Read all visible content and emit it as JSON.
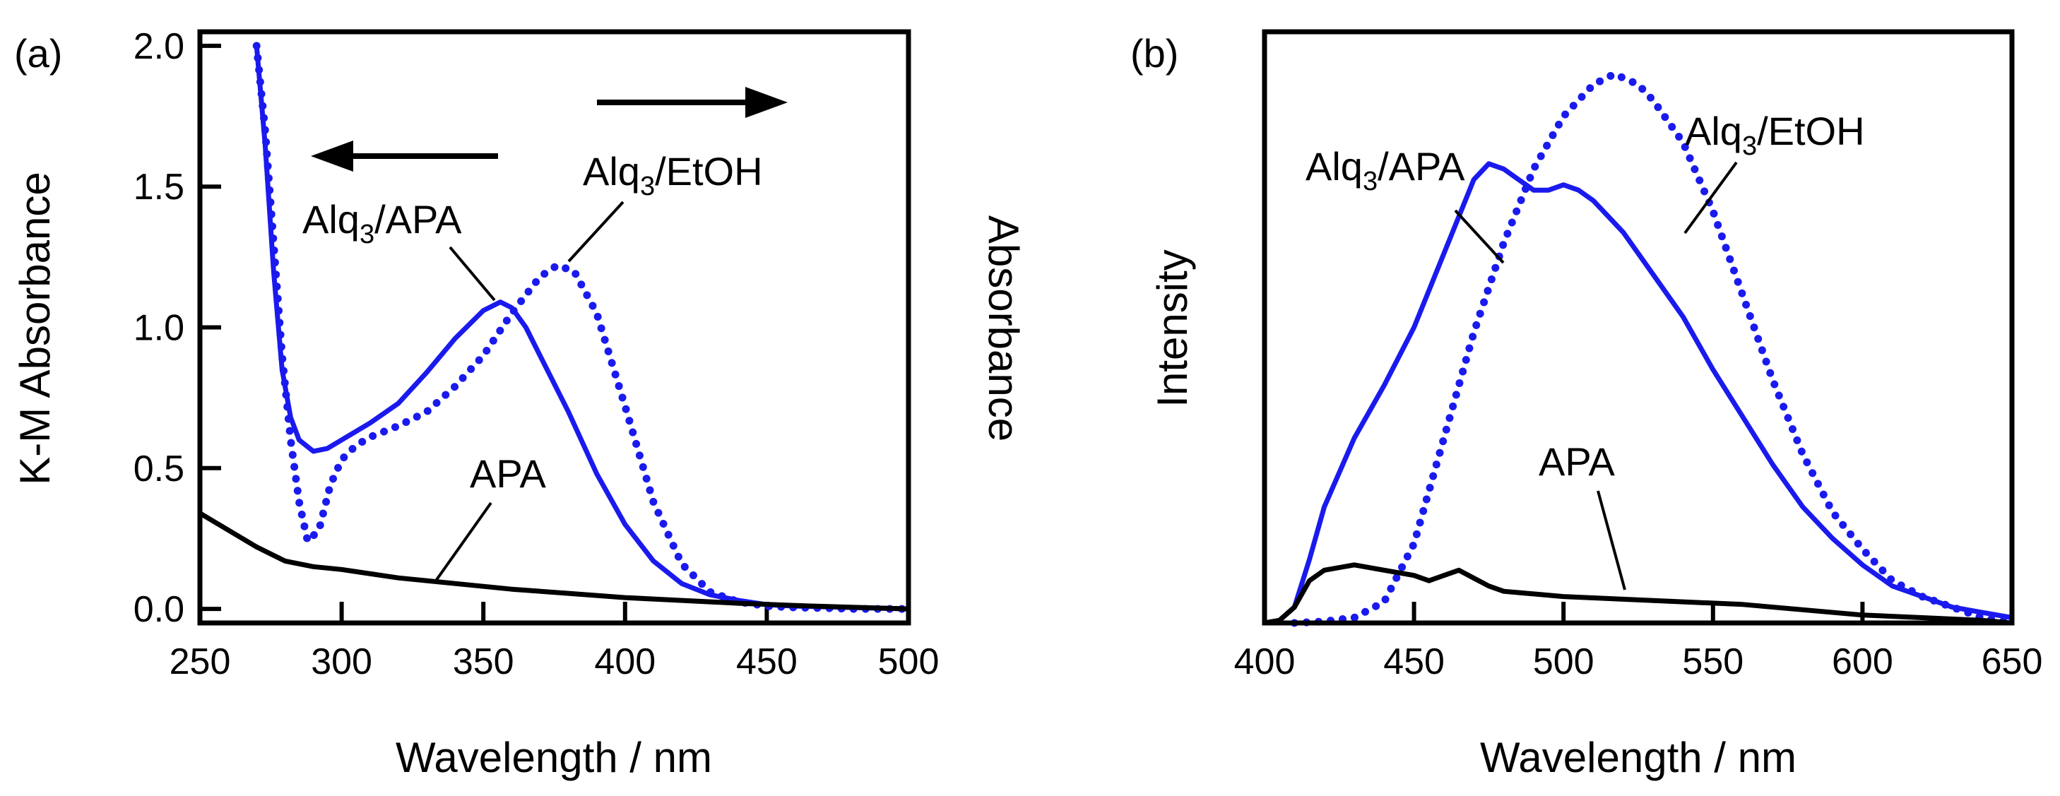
{
  "chart_data": [
    {
      "panel": "(a)",
      "type": "line",
      "xlabel": "Wavelength / nm",
      "ylabel_left": "K-M Absorbance",
      "ylabel_right": "Absorbance",
      "xlim": [
        250,
        500
      ],
      "ylim": [
        -0.05,
        2.05
      ],
      "xticks": [
        250,
        300,
        350,
        400,
        450,
        500
      ],
      "yticks": [
        0.0,
        0.5,
        1.0,
        1.5,
        2.0
      ],
      "ytick_labels": [
        "0.0",
        "0.5",
        "1.0",
        "1.5",
        "2.0"
      ],
      "series": [
        {
          "name": "Alq3/APA",
          "style": "solid",
          "color": "#1a1aee",
          "x": [
            270,
            273,
            276,
            279,
            282,
            285,
            290,
            295,
            300,
            310,
            320,
            330,
            340,
            350,
            356,
            360,
            365,
            370,
            380,
            390,
            400,
            410,
            420,
            430,
            440,
            450,
            460,
            480,
            500
          ],
          "y": [
            2.0,
            1.65,
            1.2,
            0.85,
            0.68,
            0.6,
            0.56,
            0.57,
            0.6,
            0.66,
            0.73,
            0.84,
            0.96,
            1.06,
            1.09,
            1.07,
            1.0,
            0.9,
            0.7,
            0.48,
            0.3,
            0.17,
            0.09,
            0.05,
            0.03,
            0.015,
            0.01,
            0.005,
            0.0
          ]
        },
        {
          "name": "Alq3/EtOH",
          "style": "dotted",
          "color": "#1a1aee",
          "x": [
            270,
            273,
            276,
            279,
            282,
            285,
            288,
            292,
            296,
            300,
            305,
            310,
            320,
            330,
            340,
            350,
            360,
            370,
            376,
            382,
            390,
            400,
            410,
            420,
            430,
            440,
            450,
            460,
            470,
            480,
            500
          ],
          "y": [
            2.0,
            1.7,
            1.3,
            0.9,
            0.6,
            0.38,
            0.24,
            0.28,
            0.44,
            0.53,
            0.58,
            0.61,
            0.65,
            0.7,
            0.79,
            0.9,
            1.05,
            1.18,
            1.22,
            1.2,
            1.05,
            0.72,
            0.38,
            0.16,
            0.06,
            0.025,
            0.01,
            0.005,
            0.003,
            0.0,
            0.0
          ]
        },
        {
          "name": "APA",
          "style": "solid",
          "color": "#000000",
          "x": [
            250,
            260,
            270,
            280,
            290,
            300,
            320,
            340,
            360,
            380,
            400,
            420,
            440,
            460,
            480,
            500
          ],
          "y": [
            0.34,
            0.28,
            0.22,
            0.17,
            0.15,
            0.14,
            0.11,
            0.09,
            0.07,
            0.055,
            0.04,
            0.03,
            0.02,
            0.012,
            0.006,
            0.0
          ]
        }
      ],
      "arrows": [
        {
          "direction": "left",
          "axis": "left"
        },
        {
          "direction": "right",
          "axis": "right"
        }
      ],
      "annotations": [
        {
          "text_main": "Alq",
          "text_sub": "3",
          "text_rest": "/APA"
        },
        {
          "text_main": "Alq",
          "text_sub": "3",
          "text_rest": "/EtOH"
        },
        {
          "text_main": "APA",
          "text_sub": "",
          "text_rest": ""
        }
      ]
    },
    {
      "panel": "(b)",
      "type": "line",
      "xlabel": "Wavelength / nm",
      "ylabel": "Intensity",
      "xlim": [
        400,
        650
      ],
      "ylim": [
        0,
        1.12
      ],
      "xticks": [
        400,
        450,
        500,
        550,
        600,
        650
      ],
      "series": [
        {
          "name": "Alq3/APA",
          "style": "solid",
          "color": "#1a1aee",
          "x": [
            400,
            405,
            410,
            415,
            420,
            430,
            440,
            450,
            460,
            470,
            475,
            480,
            485,
            490,
            495,
            500,
            505,
            510,
            520,
            530,
            540,
            550,
            560,
            570,
            580,
            590,
            600,
            610,
            620,
            630,
            640,
            650
          ],
          "y": [
            0.0,
            0.005,
            0.03,
            0.12,
            0.22,
            0.35,
            0.45,
            0.56,
            0.7,
            0.84,
            0.87,
            0.86,
            0.84,
            0.82,
            0.82,
            0.83,
            0.82,
            0.8,
            0.74,
            0.66,
            0.58,
            0.48,
            0.39,
            0.3,
            0.22,
            0.16,
            0.11,
            0.07,
            0.05,
            0.03,
            0.02,
            0.01
          ]
        },
        {
          "name": "Alq3/EtOH",
          "style": "dotted",
          "color": "#1a1aee",
          "x": [
            410,
            420,
            430,
            440,
            450,
            460,
            470,
            480,
            490,
            500,
            510,
            517,
            525,
            530,
            540,
            550,
            560,
            570,
            580,
            590,
            600,
            610,
            620,
            630,
            640,
            650
          ],
          "y": [
            0.0,
            0.003,
            0.01,
            0.04,
            0.15,
            0.35,
            0.55,
            0.72,
            0.86,
            0.96,
            1.02,
            1.04,
            1.02,
            0.99,
            0.91,
            0.78,
            0.62,
            0.46,
            0.32,
            0.21,
            0.14,
            0.08,
            0.05,
            0.03,
            0.01,
            0.0
          ]
        },
        {
          "name": "APA",
          "style": "solid",
          "color": "#000000",
          "x": [
            400,
            405,
            410,
            415,
            420,
            430,
            440,
            450,
            455,
            460,
            465,
            470,
            475,
            480,
            490,
            500,
            520,
            540,
            560,
            580,
            600,
            620,
            640,
            650
          ],
          "y": [
            0.0,
            0.005,
            0.03,
            0.08,
            0.1,
            0.11,
            0.1,
            0.09,
            0.08,
            0.09,
            0.1,
            0.085,
            0.07,
            0.06,
            0.055,
            0.05,
            0.045,
            0.04,
            0.035,
            0.025,
            0.015,
            0.01,
            0.005,
            0.0
          ]
        }
      ],
      "annotations": [
        {
          "text_main": "Alq",
          "text_sub": "3",
          "text_rest": "/APA"
        },
        {
          "text_main": "Alq",
          "text_sub": "3",
          "text_rest": "/EtOH"
        },
        {
          "text_main": "APA",
          "text_sub": "",
          "text_rest": ""
        }
      ]
    }
  ]
}
